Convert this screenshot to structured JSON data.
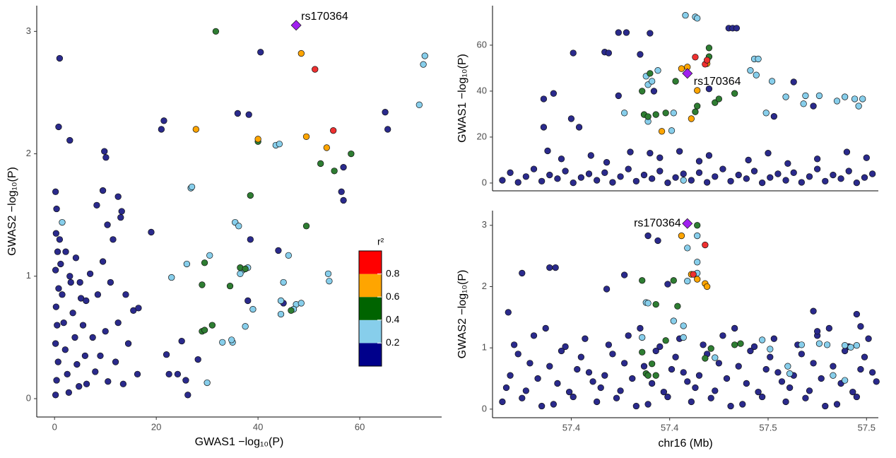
{
  "chart_data": [
    {
      "type": "scatter",
      "xlabel": "GWAS1 −log₁₀(P)",
      "ylabel": "GWAS2 −log₁₀(P)",
      "xlim": [
        -3.5,
        76.1
      ],
      "ylim": [
        -0.15,
        3.21
      ],
      "xticks": [
        0,
        20,
        40,
        60
      ],
      "yticks": [
        0,
        1,
        2,
        3
      ],
      "annotation": "rs170364",
      "series": [
        {
          "color": "#2a2a8c",
          "x": [
            0.2,
            0.4,
            0.3,
            0.6,
            0.2,
            0.8,
            0.3,
            0.5,
            0.2,
            0.7,
            0.4,
            0.2,
            1.2,
            1.5,
            1.8,
            2.1,
            2.5,
            2.8,
            3.2,
            3.6,
            4.0,
            4.4,
            4.8,
            5.2,
            5.6,
            6.0,
            6.3,
            1.0,
            2.2,
            3.0,
            4.2,
            5.0,
            6.2,
            7.0,
            7.5,
            8.0,
            8.5,
            9.0,
            9.5,
            10.0,
            10.5,
            11.0,
            11.5,
            12.0,
            12.5,
            13.0,
            13.5,
            14.0,
            14.5,
            15.5,
            1,
            0.8,
            3,
            9.8,
            10.1,
            21.5,
            21,
            40.5,
            36,
            38.2,
            65,
            65.5,
            56.8,
            56.4,
            56.8,
            38.5,
            44,
            38,
            22,
            22.5,
            25,
            24.2,
            25.8,
            26.2,
            28.2,
            16.5,
            19,
            16.3,
            9.5,
            8.3,
            12.5,
            13.2,
            10.4,
            45
          ],
          "values": [
            1.69,
            1.55,
            1.35,
            1.2,
            1.05,
            0.9,
            0.75,
            0.6,
            0.45,
            0.3,
            0.15,
            0.03,
            1.1,
            0.85,
            0.62,
            0.4,
            0.2,
            0.05,
            0.95,
            0.7,
            0.5,
            0.28,
            0.1,
            0.82,
            0.6,
            0.35,
            0.12,
            1.3,
            1.2,
            1.0,
            1.15,
            0.95,
            0.8,
            1.02,
            0.5,
            0.22,
            0.85,
            0.35,
            1.12,
            0.55,
            0.14,
            0.95,
            1.3,
            0.3,
            0.62,
            1.48,
            0.12,
            0.85,
            0.45,
            0.72,
            2.78,
            2.22,
            2.11,
            2.02,
            1.97,
            2.27,
            2.2,
            2.83,
            2.33,
            2.32,
            2.34,
            2.2,
            1.89,
            1.69,
            1.62,
            1.3,
            1.21,
            0.8,
            0.36,
            0.2,
            0.47,
            0.2,
            0.15,
            0.03,
            0.32,
            0.74,
            1.36,
            0.2,
            1.7,
            1.58,
            1.65,
            1.53,
            1.42,
            0.78
          ]
        },
        {
          "color": "#87ceeb",
          "x": [
            1.5,
            26.8,
            27,
            23,
            30.5,
            35.5,
            36.2,
            37,
            38,
            36.5,
            35,
            34.8,
            37.5,
            33,
            30,
            39,
            44.5,
            45,
            46,
            47.5,
            48.5,
            44.5,
            47,
            53.8,
            54,
            71.7,
            72.5,
            72.8,
            43.5,
            44.2,
            26
          ],
          "values": [
            1.44,
            1.72,
            1.73,
            0.99,
            1.17,
            1.44,
            1.41,
            1.05,
            1.07,
            1.02,
            0.46,
            0.48,
            0.59,
            0.46,
            0.13,
            0.73,
            0.69,
            0.95,
            1.17,
            0.77,
            0.78,
            0.8,
            0.73,
            1.02,
            0.96,
            2.4,
            2.73,
            2.8,
            2.07,
            2.08,
            1.1
          ]
        },
        {
          "color": "#2e7d32",
          "x": [
            31.7,
            40,
            38.5,
            49.5,
            52.3,
            55,
            58.3,
            29.5,
            29,
            31,
            29,
            29.5,
            34.5,
            36.5,
            37.5,
            46.5
          ],
          "values": [
            3.0,
            2.1,
            1.66,
            1.41,
            1.92,
            1.86,
            2.0,
            1.11,
            0.93,
            0.6,
            0.55,
            0.56,
            0.92,
            1.07,
            1.06,
            0.72
          ]
        },
        {
          "color": "#ffa500",
          "x": [
            27.8,
            48.5,
            49.5,
            53.5,
            40
          ],
          "values": [
            2.2,
            2.82,
            2.14,
            2.05,
            2.12
          ]
        },
        {
          "color": "#ee3030",
          "x": [
            51.2,
            54.8
          ],
          "values": [
            2.69,
            2.19
          ]
        },
        {
          "color": "#a020f0",
          "marker": "diamond",
          "x": [
            47.5
          ],
          "values": [
            3.05
          ]
        }
      ],
      "legend": {
        "title": "r²",
        "lim": [
          0,
          1
        ],
        "ticks": [
          0.2,
          0.4,
          0.6,
          0.8
        ],
        "colors": [
          "#00008b",
          "#87ceeb",
          "#006400",
          "#ffa500",
          "#ff0000"
        ]
      }
    },
    {
      "type": "scatter",
      "ylabel": "GWAS1 −log₁₀(P)",
      "xlim": [
        57.31,
        57.506
      ],
      "ylim": [
        -3.4,
        77.2
      ],
      "yticks": [
        0,
        20,
        40,
        60
      ],
      "annotation": "rs170364",
      "series": [
        {
          "color": "#2a2a8c",
          "x": [
            57.315,
            57.319,
            57.323,
            57.327,
            57.331,
            57.335,
            57.339,
            57.343,
            57.347,
            57.351,
            57.355,
            57.359,
            57.363,
            57.367,
            57.371,
            57.375,
            57.379,
            57.383,
            57.387,
            57.391,
            57.395,
            57.399,
            57.403,
            57.407,
            57.411,
            57.415,
            57.419,
            57.423,
            57.427,
            57.431,
            57.435,
            57.439,
            57.443,
            57.447,
            57.451,
            57.455,
            57.459,
            57.463,
            57.467,
            57.471,
            57.475,
            57.479,
            57.483,
            57.487,
            57.491,
            57.495,
            57.499,
            57.503,
            57.338,
            57.345,
            57.36,
            57.368,
            57.38,
            57.39,
            57.395,
            57.405,
            57.415,
            57.42,
            57.44,
            57.45,
            57.46,
            57.475,
            57.49,
            57.5,
            57.341,
            57.336,
            57.351,
            57.374,
            57.378,
            57.39,
            57.367,
            57.369,
            57.385,
            57.374,
            57.35,
            57.354,
            57.336,
            57.43,
            57.432,
            57.434,
            57.42,
            57.392,
            57.463,
            57.453,
            57.473
          ],
          "values": [
            1.2,
            4.5,
            0.3,
            2.8,
            6.1,
            0.8,
            3.5,
            1.9,
            5.2,
            0.1,
            2.4,
            4.0,
            1.2,
            4.5,
            0.3,
            2.8,
            6.1,
            0.8,
            3.5,
            1.9,
            5.2,
            0.1,
            2.4,
            4.0,
            1.2,
            4.5,
            0.3,
            2.8,
            6.1,
            0.8,
            3.5,
            1.9,
            5.2,
            0.1,
            2.4,
            4.0,
            1.2,
            4.5,
            0.3,
            2.8,
            6.1,
            0.8,
            3.5,
            1.9,
            5.2,
            0.1,
            2.4,
            4.0,
            14,
            10.5,
            12,
            9,
            13.5,
            13,
            11,
            13.8,
            9.5,
            12,
            10,
            13,
            8.5,
            10.5,
            13.5,
            11,
            39,
            36.6,
            56.6,
            65.5,
            65.5,
            65.2,
            57,
            56.6,
            56,
            38,
            28,
            24.3,
            24.3,
            67.4,
            67.4,
            67.4,
            41,
            40,
            44,
            29,
            33.5
          ]
        },
        {
          "color": "#87ceeb",
          "x": [
            57.408,
            57.413,
            57.414,
            57.443,
            57.445,
            57.441,
            57.444,
            57.452,
            57.459,
            57.469,
            57.468,
            57.476,
            57.485,
            57.489,
            57.494,
            57.496,
            57.498,
            57.449,
            57.402,
            57.388,
            57.389,
            57.391,
            57.401,
            57.377,
            57.389,
            57.394,
            57.407
          ],
          "values": [
            73,
            72.3,
            71.7,
            54,
            54,
            49,
            47,
            44.3,
            37.5,
            38,
            34.5,
            38,
            35.7,
            37.5,
            36.6,
            33.5,
            36.6,
            30.5,
            30.5,
            46.5,
            42.8,
            44.3,
            22.8,
            30.5,
            26.8,
            49,
            1.2
          ]
        },
        {
          "color": "#2e7d32",
          "x": [
            57.386,
            57.39,
            57.387,
            57.389,
            57.398,
            57.403,
            57.414,
            57.413,
            57.42,
            57.42,
            57.423,
            57.433,
            57.425,
            57.393
          ],
          "values": [
            40,
            47.7,
            29.8,
            28.9,
            30.5,
            44.3,
            33.5,
            31,
            55,
            58.8,
            35,
            39,
            36.6,
            29.8
          ]
        },
        {
          "color": "#ffa500",
          "x": [
            57.406,
            57.409,
            57.414,
            57.411,
            57.419,
            57.396
          ],
          "values": [
            49.8,
            50.5,
            40.3,
            28,
            52,
            22.5
          ]
        },
        {
          "color": "#ee3030",
          "x": [
            57.413,
            57.418,
            57.419
          ],
          "values": [
            54.8,
            51.7,
            53.5
          ]
        },
        {
          "color": "#a020f0",
          "marker": "diamond",
          "x": [
            57.409
          ],
          "values": [
            47.7
          ]
        }
      ]
    },
    {
      "type": "scatter",
      "xlabel": "chr16 (Mb)",
      "ylabel": "GWAS2 −log₁₀(P)",
      "xlim": [
        57.31,
        57.506
      ],
      "ylim": [
        -0.14,
        3.24
      ],
      "xticks": [
        {
          "value": 57.35,
          "label": "57.4"
        },
        {
          "value": 57.4,
          "label": "57.4"
        },
        {
          "value": 57.45,
          "label": "57.5"
        },
        {
          "value": 57.5,
          "label": "57.5"
        }
      ],
      "yticks": [
        0,
        1,
        2,
        3
      ],
      "annotation": "rs170364",
      "series": [
        {
          "color": "#2a2a8c",
          "x": [
            57.315,
            57.319,
            57.323,
            57.327,
            57.331,
            57.335,
            57.339,
            57.343,
            57.347,
            57.351,
            57.355,
            57.359,
            57.363,
            57.367,
            57.371,
            57.375,
            57.379,
            57.383,
            57.387,
            57.391,
            57.395,
            57.399,
            57.403,
            57.407,
            57.411,
            57.415,
            57.419,
            57.423,
            57.427,
            57.431,
            57.435,
            57.439,
            57.443,
            57.447,
            57.451,
            57.455,
            57.459,
            57.463,
            57.467,
            57.471,
            57.475,
            57.479,
            57.483,
            57.487,
            57.491,
            57.495,
            57.499,
            57.503,
            57.317,
            57.321,
            57.325,
            57.329,
            57.333,
            57.337,
            57.341,
            57.345,
            57.349,
            57.353,
            57.357,
            57.361,
            57.365,
            57.369,
            57.373,
            57.377,
            57.381,
            57.385,
            57.389,
            57.393,
            57.397,
            57.401,
            57.405,
            57.409,
            57.413,
            57.417,
            57.421,
            57.425,
            57.429,
            57.433,
            57.437,
            57.441,
            57.445,
            57.449,
            57.453,
            57.457,
            57.461,
            57.465,
            57.469,
            57.473,
            57.477,
            57.481,
            57.485,
            57.489,
            57.493,
            57.497,
            57.501,
            57.505,
            57.339,
            57.342,
            57.325,
            57.318,
            57.368,
            57.377,
            57.389,
            57.394,
            57.399,
            57.473,
            57.495,
            57.475,
            57.497
          ],
          "values": [
            0.12,
            0.55,
            0.9,
            0.3,
            1.2,
            0.05,
            0.7,
            0.42,
            1.02,
            0.2,
            0.85,
            0.6,
            0.12,
            0.55,
            0.9,
            0.3,
            1.2,
            0.05,
            0.7,
            0.42,
            1.02,
            0.2,
            0.85,
            0.6,
            0.12,
            0.55,
            0.9,
            0.3,
            1.2,
            0.05,
            0.7,
            0.42,
            1.02,
            0.2,
            0.85,
            0.6,
            0.12,
            0.55,
            0.9,
            0.3,
            1.2,
            0.05,
            0.7,
            0.42,
            1.02,
            0.2,
            0.85,
            0.6,
            0.35,
            1.05,
            0.18,
            0.75,
            0.5,
            1.32,
            0.08,
            0.95,
            0.28,
            0.65,
            1.15,
            0.45,
            0.35,
            1.05,
            0.18,
            0.75,
            0.5,
            1.32,
            0.08,
            0.95,
            0.28,
            0.65,
            1.15,
            0.45,
            0.35,
            1.05,
            0.18,
            0.75,
            0.5,
            1.32,
            0.08,
            0.95,
            0.28,
            0.65,
            1.15,
            0.45,
            0.35,
            1.05,
            0.18,
            0.75,
            0.5,
            1.32,
            0.08,
            0.95,
            0.28,
            0.65,
            1.15,
            0.45,
            2.31,
            2.31,
            2.22,
            1.58,
            1.96,
            2.19,
            2.83,
            2.75,
            2.04,
            1.6,
            1.55,
            1.27,
            1.35
          ]
        },
        {
          "color": "#87ceeb",
          "x": [
            57.409,
            57.414,
            57.414,
            57.409,
            57.388,
            57.389,
            57.402,
            57.407,
            57.407,
            57.386,
            57.447,
            57.451,
            57.46,
            57.461,
            57.467,
            57.476,
            57.48,
            57.489,
            57.492,
            57.495,
            57.483,
            57.489,
            57.423,
            57.414
          ],
          "values": [
            2.63,
            2.4,
            2.22,
            2.09,
            1.74,
            1.73,
            1.44,
            1.36,
            1.17,
            1.17,
            1.13,
            0.98,
            0.7,
            0.58,
            1.05,
            1.07,
            1.05,
            1.04,
            1.01,
            1.04,
            0.55,
            0.47,
            0.84,
            2.83
          ]
        },
        {
          "color": "#2e7d32",
          "x": [
            57.414,
            57.386,
            57.402,
            57.393,
            57.404,
            57.386,
            57.391,
            57.388,
            57.389,
            57.393,
            57.398,
            57.433,
            57.436,
            57.418,
            57.421
          ],
          "values": [
            3.0,
            2.1,
            2.1,
            1.71,
            1.68,
            0.93,
            0.74,
            0.58,
            0.55,
            0.55,
            1.12,
            1.05,
            1.07,
            0.83,
            0.99
          ]
        },
        {
          "color": "#ffa500",
          "x": [
            57.406,
            57.411,
            57.414,
            57.418,
            57.419
          ],
          "values": [
            2.83,
            2.2,
            2.12,
            2.05,
            2.0
          ]
        },
        {
          "color": "#ee3030",
          "x": [
            57.418,
            57.412
          ],
          "values": [
            2.68,
            2.2
          ]
        },
        {
          "color": "#a020f0",
          "marker": "diamond",
          "x": [
            57.409
          ],
          "values": [
            3.03
          ]
        }
      ]
    }
  ]
}
